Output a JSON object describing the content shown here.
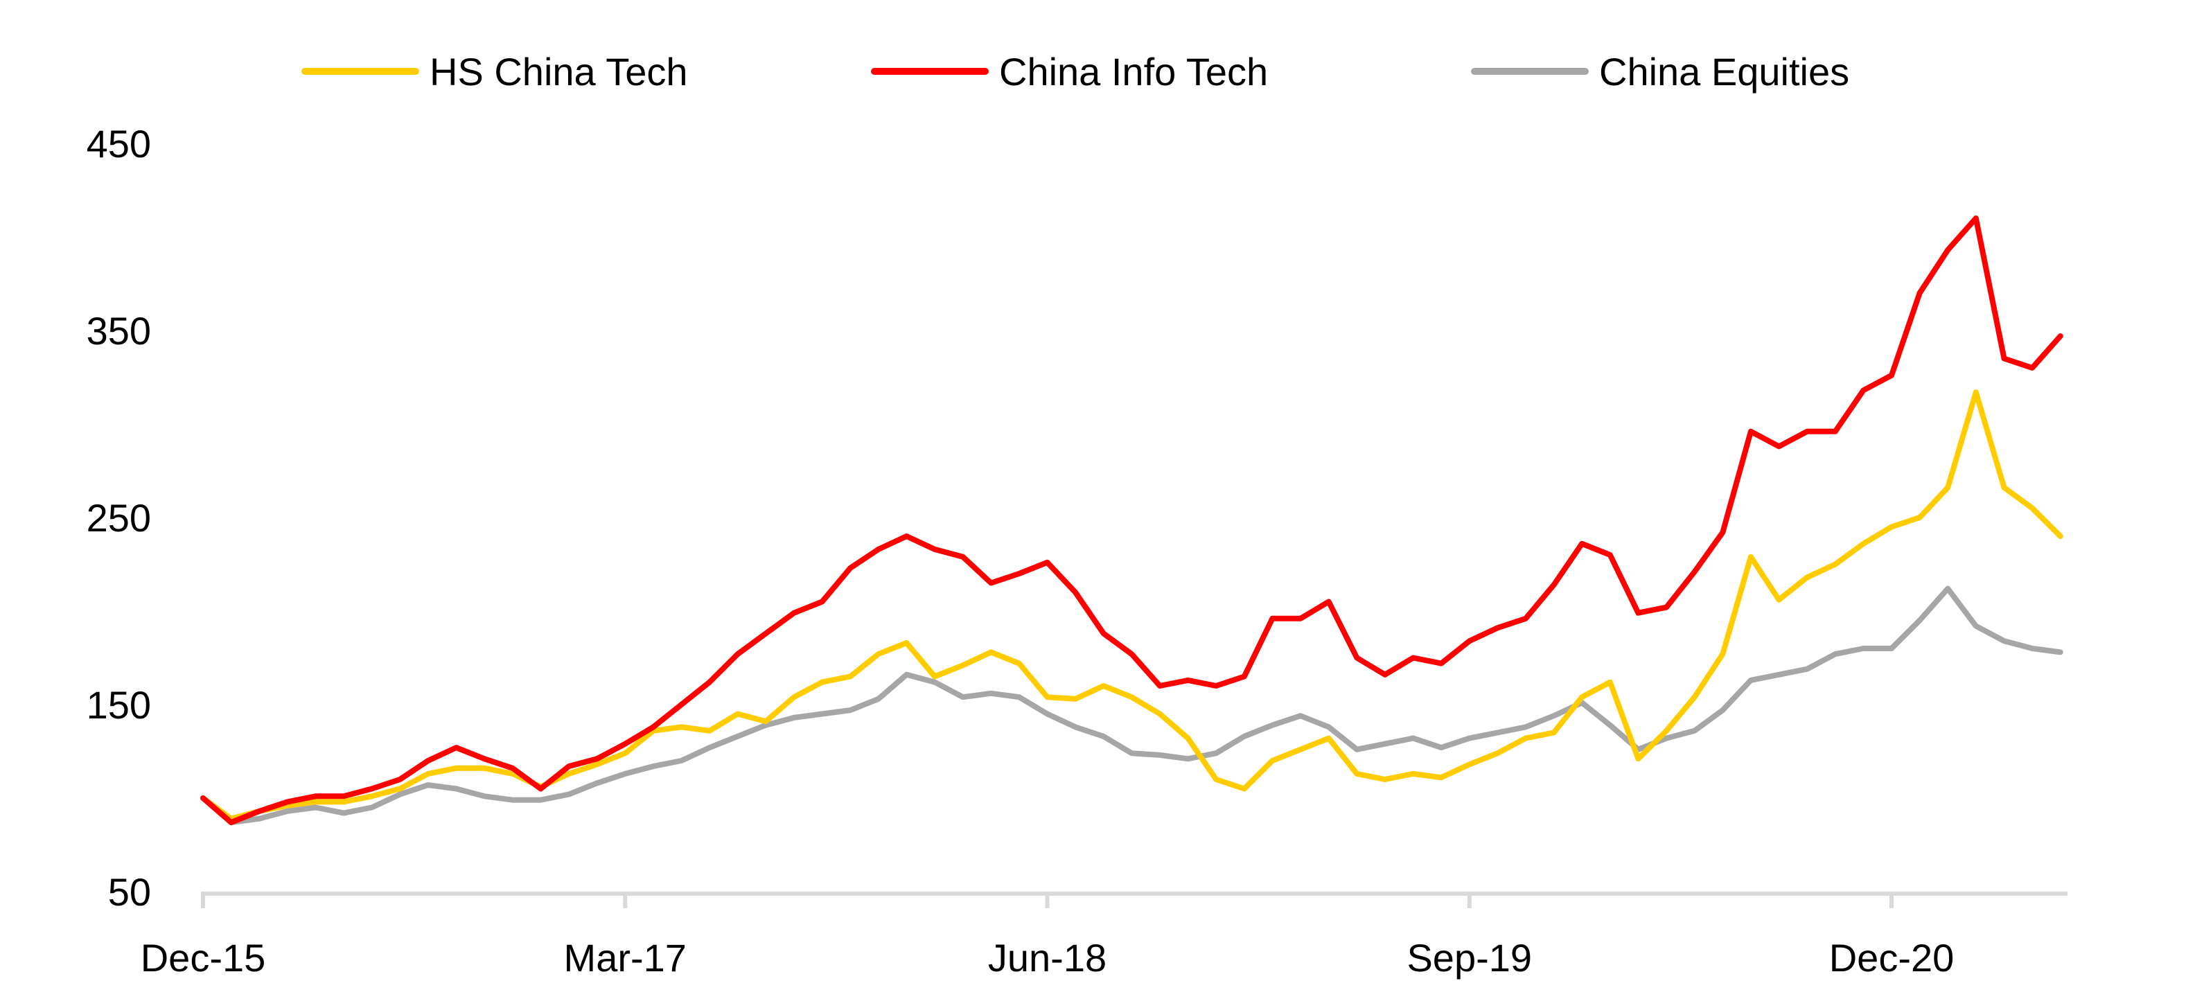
{
  "chart_data": {
    "type": "line",
    "title": "",
    "xlabel": "",
    "ylabel": "",
    "ylim": [
      50,
      450
    ],
    "yticks": [
      50,
      150,
      250,
      350,
      450
    ],
    "x_start": "Dec-15",
    "x_end": "Jun-21",
    "x_unit": "months since Dec-15",
    "xticks": [
      {
        "label": "Dec-15",
        "month": 0
      },
      {
        "label": "Mar-17",
        "month": 15
      },
      {
        "label": "Jun-18",
        "month": 30
      },
      {
        "label": "Sep-19",
        "month": 45
      },
      {
        "label": "Dec-20",
        "month": 60
      }
    ],
    "grid": false,
    "legend_position": "top-center",
    "x": [
      0,
      1,
      2,
      3,
      4,
      5,
      6,
      7,
      8,
      9,
      10,
      11,
      12,
      13,
      14,
      15,
      16,
      17,
      18,
      19,
      20,
      21,
      22,
      23,
      24,
      25,
      26,
      27,
      28,
      29,
      30,
      31,
      32,
      33,
      34,
      35,
      36,
      37,
      38,
      39,
      40,
      41,
      42,
      43,
      44,
      45,
      46,
      47,
      48,
      49,
      50,
      51,
      52,
      53,
      54,
      55,
      56,
      57,
      58,
      59,
      60,
      61,
      62,
      63,
      64,
      65,
      66
    ],
    "series": [
      {
        "name": "HS China Tech",
        "color": "#FFCC00",
        "values": [
          100,
          89,
          93,
          96,
          98,
          98,
          101,
          105,
          113,
          116,
          116,
          113,
          106,
          113,
          118,
          124,
          136,
          138,
          136,
          145,
          141,
          154,
          162,
          165,
          177,
          183,
          165,
          171,
          178,
          172,
          154,
          153,
          160,
          154,
          145,
          132,
          110,
          105,
          120,
          126,
          132,
          113,
          110,
          113,
          111,
          118,
          124,
          132,
          135,
          154,
          162,
          121,
          136,
          154,
          177,
          229,
          206,
          218,
          225,
          236,
          245,
          250,
          266,
          317,
          266,
          255,
          240
        ]
      },
      {
        "name": "China Info Tech",
        "color": "#FF0000",
        "values": [
          100,
          87,
          93,
          98,
          101,
          101,
          105,
          110,
          120,
          127,
          121,
          116,
          105,
          117,
          121,
          129,
          138,
          150,
          162,
          177,
          188,
          199,
          205,
          223,
          233,
          240,
          233,
          229,
          215,
          220,
          226,
          210,
          188,
          177,
          160,
          163,
          160,
          165,
          196,
          196,
          205,
          175,
          166,
          175,
          172,
          184,
          191,
          196,
          214,
          236,
          230,
          199,
          202,
          221,
          242,
          296,
          288,
          296,
          296,
          318,
          326,
          370,
          393,
          410,
          335,
          330,
          347
        ]
      },
      {
        "name": "China Equities",
        "color": "#A6A6A6",
        "values": [
          100,
          87,
          89,
          93,
          95,
          92,
          95,
          102,
          107,
          105,
          101,
          99,
          99,
          102,
          108,
          113,
          117,
          120,
          127,
          133,
          139,
          143,
          145,
          147,
          153,
          166,
          162,
          154,
          156,
          154,
          145,
          138,
          133,
          124,
          123,
          121,
          124,
          133,
          139,
          144,
          138,
          126,
          129,
          132,
          127,
          132,
          135,
          138,
          144,
          151,
          139,
          126,
          132,
          136,
          147,
          163,
          166,
          169,
          177,
          180,
          180,
          195,
          212,
          192,
          184,
          180,
          178
        ]
      }
    ]
  }
}
